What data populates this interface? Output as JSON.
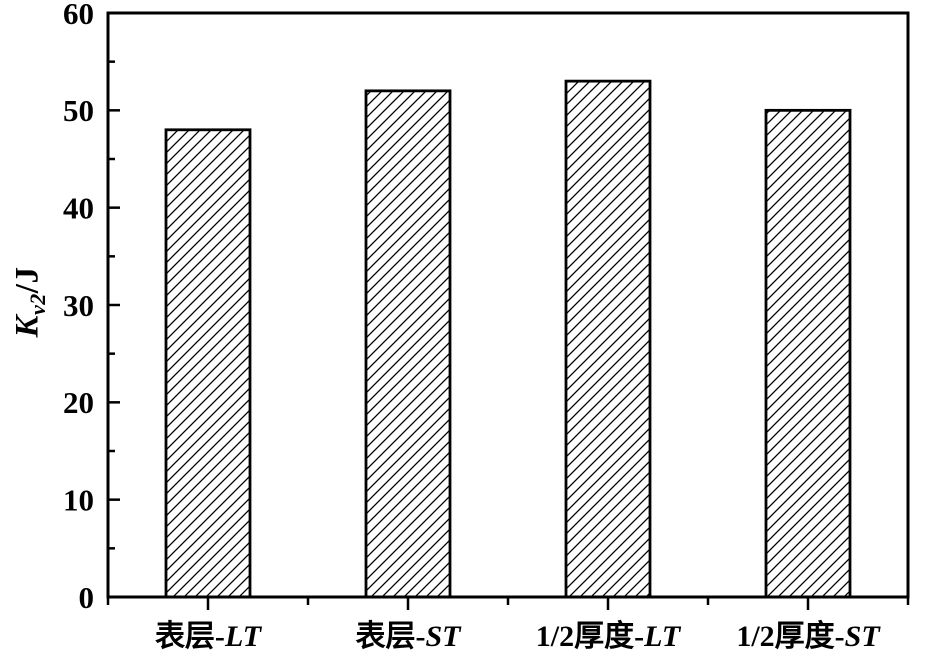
{
  "figure": {
    "background": "#ffffff",
    "axis_color": "#000000",
    "bar_outline_color": "#000000",
    "bar_fill_background": "#ffffff",
    "hatch_style": "diagonal-forward-slash"
  },
  "chart_data": {
    "type": "bar",
    "title": "",
    "categories": [
      "表层-LT",
      "表层-ST",
      "1/2厚度-LT",
      "1/2厚度-ST"
    ],
    "category_parts": [
      {
        "plain": "表层-",
        "italic": "LT"
      },
      {
        "plain": "表层-",
        "italic": "ST"
      },
      {
        "plain": "1/2厚度-",
        "italic": "LT"
      },
      {
        "plain": "1/2厚度-",
        "italic": "ST"
      }
    ],
    "values": [
      48,
      52,
      53,
      50
    ],
    "xlabel": "",
    "ylabel": "Kv2/J",
    "ylabel_parts": {
      "symbol": "K",
      "subscript": "v2",
      "unit": "/J"
    },
    "ylim": [
      0,
      60
    ],
    "yticks": [
      0,
      10,
      20,
      30,
      40,
      50,
      60
    ],
    "ytick_minor_step": 5,
    "grid": false,
    "legend": null,
    "bar_fill": "white with black diagonal hatch",
    "frame": "full box"
  }
}
